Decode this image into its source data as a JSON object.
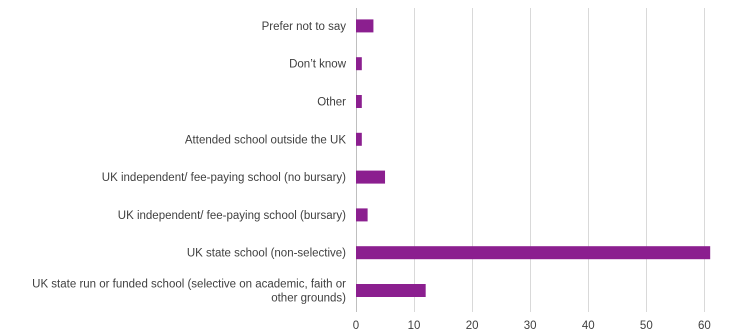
{
  "chart_data": {
    "type": "bar",
    "orientation": "horizontal",
    "categories": [
      "Prefer not to say",
      "Don’t know",
      "Other",
      "Attended school outside the UK",
      "UK independent/ fee-paying school (no bursary)",
      "UK independent/ fee-paying school (bursary)",
      "UK state school (non-selective)",
      "UK state run or funded school (selective on academic, faith or other grounds)"
    ],
    "values": [
      3,
      1,
      1,
      1,
      5,
      2,
      61,
      12
    ],
    "xlim": [
      0,
      62
    ],
    "xticks": [
      0,
      10,
      20,
      30,
      40,
      50,
      60
    ],
    "grid": "vertical",
    "title": "",
    "xlabel": "",
    "ylabel": "",
    "colors": {
      "bar": "#8b1f8f",
      "grid": "#d9d9d9",
      "text": "#404040"
    }
  }
}
